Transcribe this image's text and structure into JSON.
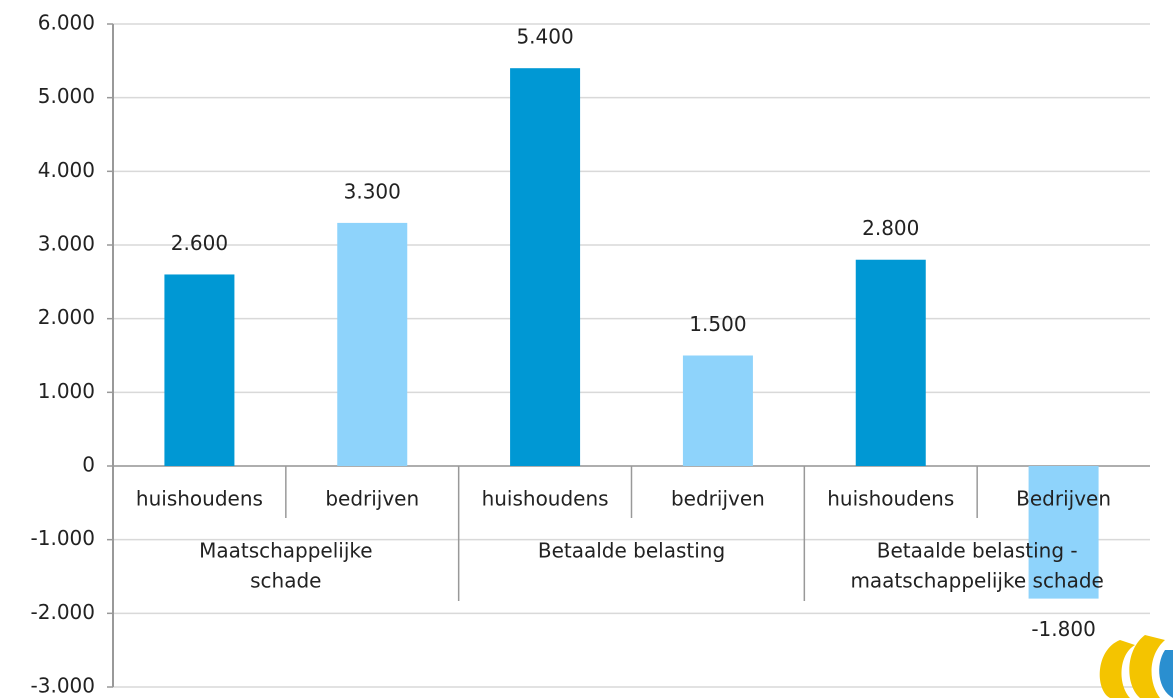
{
  "chart_data": {
    "type": "bar",
    "categories": [
      "huishoudens",
      "bedrijven",
      "huishoudens",
      "bedrijven",
      "huishoudens",
      "Bedrijven"
    ],
    "group_labels": [
      [
        "Maatschappelijke",
        "schade"
      ],
      [
        "Betaalde belasting"
      ],
      [
        "Betaalde belasting -",
        "maatschappelijke schade"
      ]
    ],
    "values": [
      2600,
      3300,
      5400,
      1500,
      2800,
      -1800
    ],
    "value_labels": [
      "2.600",
      "3.300",
      "5.400",
      "1.500",
      "2.800",
      "-1.800"
    ],
    "colors": [
      "#0098d4",
      "#8ed3fb",
      "#0098d4",
      "#8ed3fb",
      "#0098d4",
      "#8ed3fb"
    ],
    "ylim": [
      -3000,
      6000
    ],
    "yticks": [
      {
        "value": -3000,
        "label": "-3.000"
      },
      {
        "value": -2000,
        "label": "-2.000"
      },
      {
        "value": -1000,
        "label": "-1.000"
      },
      0,
      {
        "value": 1000,
        "label": "1.000"
      },
      {
        "value": 2000,
        "label": "2.000"
      },
      {
        "value": 3000,
        "label": "3.000"
      },
      {
        "value": 4000,
        "label": "4.000"
      },
      {
        "value": 5000,
        "label": "5.000"
      },
      {
        "value": 6000,
        "label": "6.000"
      }
    ],
    "grid": true
  }
}
